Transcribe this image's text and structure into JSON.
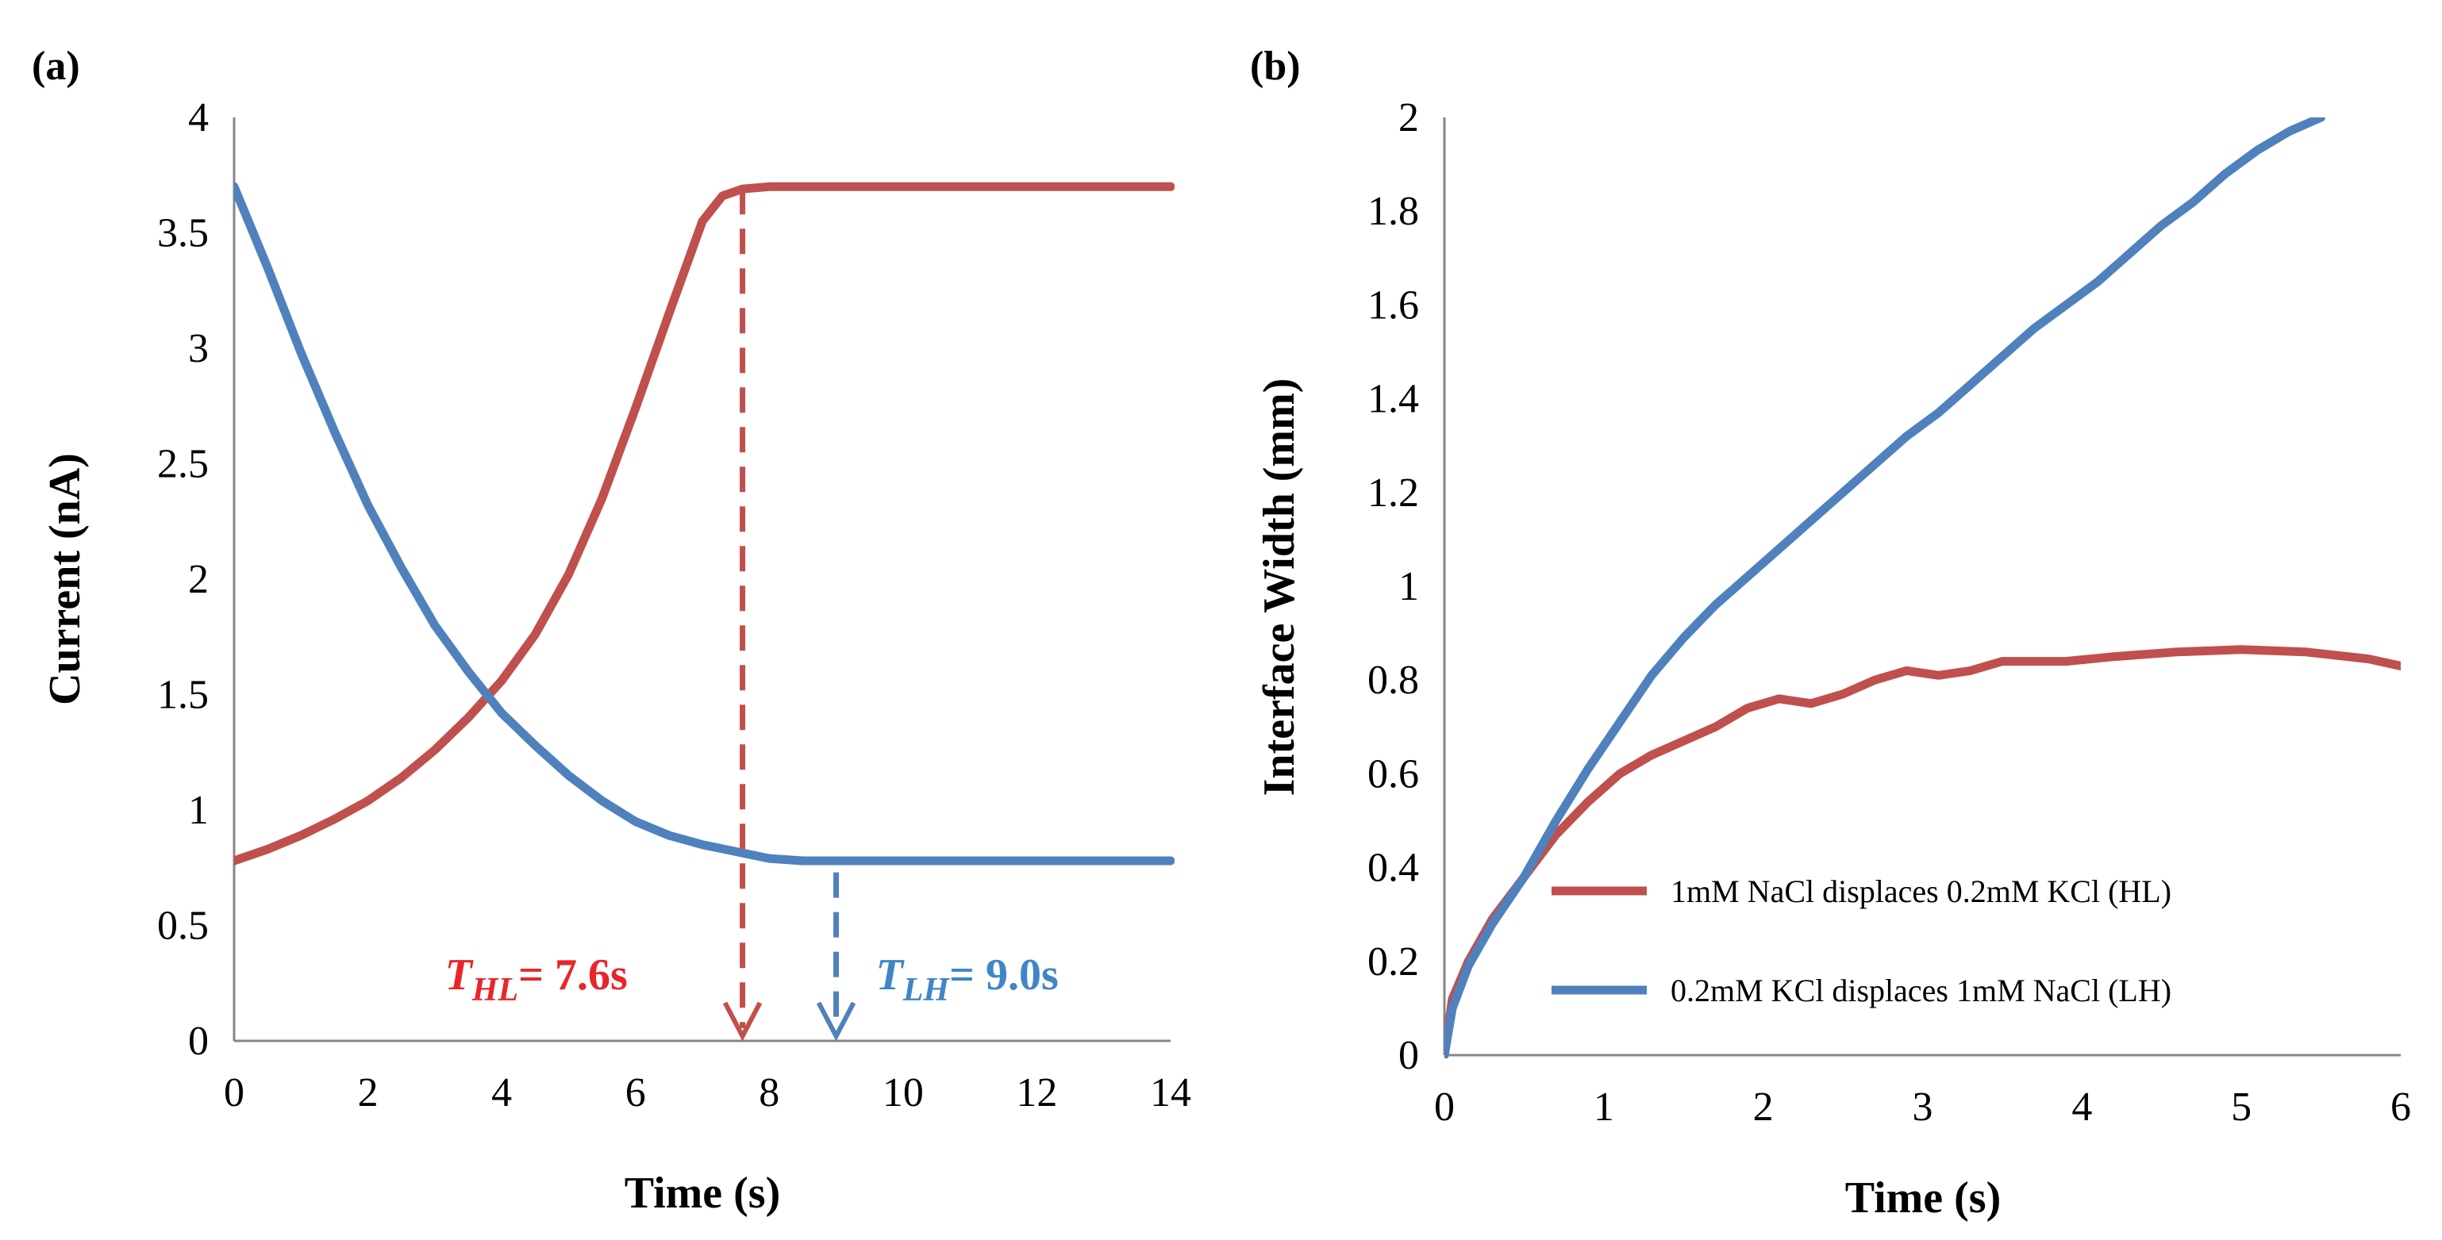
{
  "chart_data": [
    {
      "panel": "(a)",
      "type": "line",
      "title": "",
      "xlabel": "Time (s)",
      "ylabel": "Current (nA)",
      "xlim": [
        0,
        14
      ],
      "ylim": [
        0,
        4
      ],
      "xticks": [
        "0",
        "2",
        "4",
        "6",
        "8",
        "10",
        "12",
        "14"
      ],
      "yticks": [
        "0",
        "0.5",
        "1",
        "1.5",
        "2",
        "2.5",
        "3",
        "3.5",
        "4"
      ],
      "grid": false,
      "series": [
        {
          "name": "HL",
          "color": "#c0504d",
          "points": [
            [
              0,
              0.78
            ],
            [
              0.5,
              0.83
            ],
            [
              1,
              0.89
            ],
            [
              1.5,
              0.96
            ],
            [
              2,
              1.04
            ],
            [
              2.5,
              1.14
            ],
            [
              3,
              1.26
            ],
            [
              3.5,
              1.4
            ],
            [
              4,
              1.56
            ],
            [
              4.5,
              1.76
            ],
            [
              5,
              2.02
            ],
            [
              5.5,
              2.35
            ],
            [
              6,
              2.74
            ],
            [
              6.5,
              3.15
            ],
            [
              7,
              3.55
            ],
            [
              7.3,
              3.66
            ],
            [
              7.6,
              3.69
            ],
            [
              8,
              3.7
            ],
            [
              9,
              3.7
            ],
            [
              10,
              3.7
            ],
            [
              12,
              3.7
            ],
            [
              14,
              3.7
            ]
          ]
        },
        {
          "name": "LH",
          "color": "#4f81bd",
          "points": [
            [
              0,
              3.7
            ],
            [
              0.5,
              3.35
            ],
            [
              1,
              2.98
            ],
            [
              1.5,
              2.64
            ],
            [
              2,
              2.32
            ],
            [
              2.5,
              2.05
            ],
            [
              3,
              1.8
            ],
            [
              3.5,
              1.6
            ],
            [
              4,
              1.42
            ],
            [
              4.5,
              1.28
            ],
            [
              5,
              1.15
            ],
            [
              5.5,
              1.04
            ],
            [
              6,
              0.95
            ],
            [
              6.5,
              0.89
            ],
            [
              7,
              0.85
            ],
            [
              7.5,
              0.82
            ],
            [
              8,
              0.79
            ],
            [
              8.5,
              0.78
            ],
            [
              9,
              0.78
            ],
            [
              10,
              0.78
            ],
            [
              12,
              0.78
            ],
            [
              14,
              0.78
            ]
          ]
        }
      ],
      "annotations": [
        {
          "sym": "T",
          "sub": "HL",
          "text": "= 7.6s",
          "color": "#e8262a",
          "arrow_x": 7.6,
          "arrow_from_y": 3.69,
          "line_color": "#c0504d"
        },
        {
          "sym": "T",
          "sub": "LH",
          "text": "= 9.0s",
          "color": "#3f86c6",
          "arrow_x": 9.0,
          "arrow_from_y": 0.73,
          "line_color": "#4f81bd"
        }
      ]
    },
    {
      "panel": "(b)",
      "type": "line",
      "title": "",
      "xlabel": "Time (s)",
      "ylabel": "Interface Width (mm)",
      "xlim": [
        0,
        6
      ],
      "ylim": [
        0,
        2
      ],
      "xticks": [
        "0",
        "1",
        "2",
        "3",
        "4",
        "5",
        "6"
      ],
      "yticks": [
        "0",
        "0.2",
        "0.4",
        "0.6",
        "0.8",
        "1",
        "1.2",
        "1.4",
        "1.6",
        "1.8",
        "2"
      ],
      "grid": false,
      "legend_position": "bottom-right",
      "series": [
        {
          "name": "1mM NaCl displaces 0.2mM KCl (HL)",
          "color": "#c0504d",
          "points": [
            [
              0,
              0
            ],
            [
              0.05,
              0.12
            ],
            [
              0.15,
              0.2
            ],
            [
              0.3,
              0.29
            ],
            [
              0.5,
              0.38
            ],
            [
              0.7,
              0.47
            ],
            [
              0.9,
              0.54
            ],
            [
              1.1,
              0.6
            ],
            [
              1.3,
              0.64
            ],
            [
              1.5,
              0.67
            ],
            [
              1.7,
              0.7
            ],
            [
              1.9,
              0.74
            ],
            [
              2.1,
              0.76
            ],
            [
              2.3,
              0.75
            ],
            [
              2.5,
              0.77
            ],
            [
              2.7,
              0.8
            ],
            [
              2.9,
              0.82
            ],
            [
              3.1,
              0.81
            ],
            [
              3.3,
              0.82
            ],
            [
              3.5,
              0.84
            ],
            [
              3.7,
              0.84
            ],
            [
              3.9,
              0.84
            ],
            [
              4.2,
              0.85
            ],
            [
              4.6,
              0.86
            ],
            [
              5,
              0.865
            ],
            [
              5.4,
              0.86
            ],
            [
              5.8,
              0.845
            ],
            [
              6,
              0.83
            ]
          ]
        },
        {
          "name": "0.2mM KCl displaces 1mM NaCl (LH)",
          "color": "#4f81bd",
          "points": [
            [
              0,
              0
            ],
            [
              0.05,
              0.1
            ],
            [
              0.15,
              0.19
            ],
            [
              0.3,
              0.28
            ],
            [
              0.5,
              0.38
            ],
            [
              0.7,
              0.5
            ],
            [
              0.9,
              0.61
            ],
            [
              1.1,
              0.71
            ],
            [
              1.3,
              0.81
            ],
            [
              1.5,
              0.89
            ],
            [
              1.7,
              0.96
            ],
            [
              1.9,
              1.02
            ],
            [
              2.1,
              1.08
            ],
            [
              2.3,
              1.14
            ],
            [
              2.5,
              1.2
            ],
            [
              2.7,
              1.26
            ],
            [
              2.9,
              1.32
            ],
            [
              3.1,
              1.37
            ],
            [
              3.3,
              1.43
            ],
            [
              3.5,
              1.49
            ],
            [
              3.7,
              1.55
            ],
            [
              3.9,
              1.6
            ],
            [
              4.1,
              1.65
            ],
            [
              4.3,
              1.71
            ],
            [
              4.5,
              1.77
            ],
            [
              4.7,
              1.82
            ],
            [
              4.9,
              1.88
            ],
            [
              5.1,
              1.93
            ],
            [
              5.3,
              1.97
            ],
            [
              5.5,
              2.0
            ]
          ]
        }
      ]
    }
  ]
}
